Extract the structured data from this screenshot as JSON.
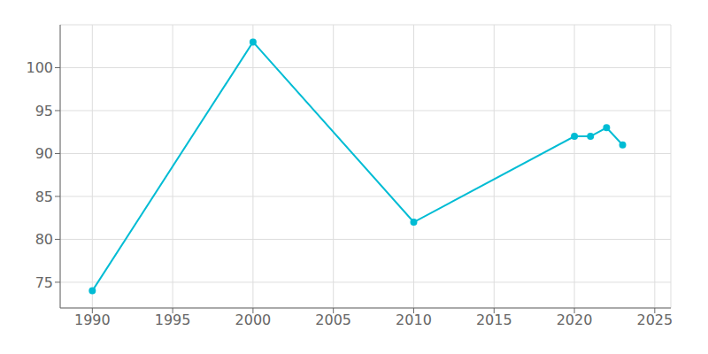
{
  "chart_data": {
    "type": "line",
    "x": [
      1990,
      2000,
      2010,
      2020,
      2021,
      2022,
      2023
    ],
    "values": [
      74,
      103,
      82,
      92,
      92,
      93,
      91
    ],
    "color": "#00bcd4",
    "xlim": [
      1988,
      2026
    ],
    "ylim": [
      72,
      105
    ],
    "xticks": [
      1990,
      1995,
      2000,
      2005,
      2010,
      2015,
      2020,
      2025
    ],
    "yticks": [
      75,
      80,
      85,
      90,
      95,
      100
    ],
    "grid": true,
    "marker": "circle"
  }
}
